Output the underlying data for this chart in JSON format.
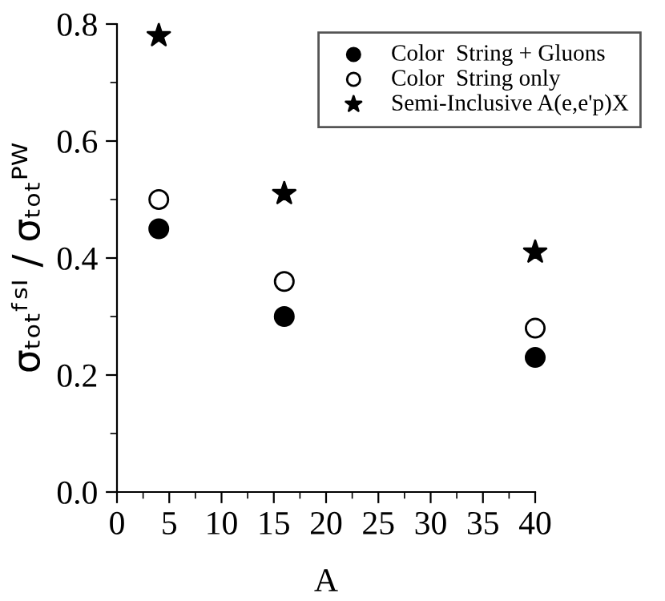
{
  "chart_data": {
    "type": "scatter",
    "xlabel": "A",
    "ylabel": "σₜₒₜᶠˢᴵ / σₜₒₜᴾᵂ",
    "x": [
      4,
      16,
      40
    ],
    "series": [
      {
        "name": "Color  String + Gluons",
        "color": "#000000",
        "marker": "circle",
        "values": [
          0.45,
          0.3,
          0.23
        ]
      },
      {
        "name": "Color  String only",
        "color": "#000000",
        "marker": "open circle",
        "values": [
          0.5,
          0.36,
          0.28
        ]
      },
      {
        "name": "Semi-Inclusive A(e,e'p)X",
        "color": "#000000",
        "marker": "star",
        "values": [
          0.78,
          0.51,
          0.41
        ]
      }
    ],
    "xlim": [
      0,
      40
    ],
    "xticks": [
      0,
      5,
      10,
      15,
      20,
      25,
      30,
      35,
      40
    ],
    "ylim": [
      0,
      0.8
    ],
    "yticks": [
      {
        "value": 0,
        "label": "0.0"
      },
      {
        "value": 0.2,
        "label": "0.2"
      },
      {
        "value": 0.4,
        "label": "0.4"
      },
      {
        "value": 0.6,
        "label": "0.6"
      },
      {
        "value": 0.8,
        "label": "0.8"
      }
    ],
    "grid": false,
    "legend": "top right"
  }
}
